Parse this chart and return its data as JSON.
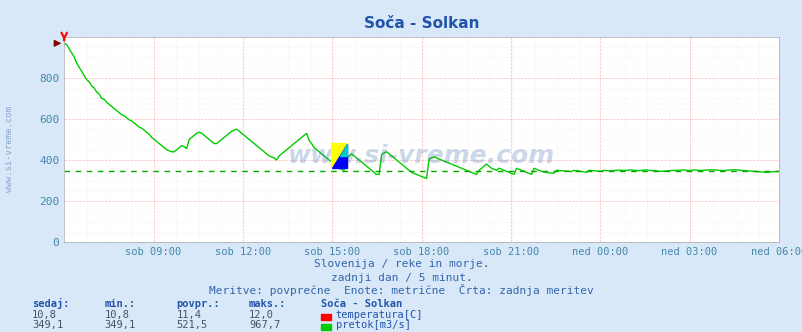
{
  "title": "Soča - Solkan",
  "bg_color": "#d8e8f8",
  "plot_bg_color": "#ffffff",
  "grid_color_major": "#ff9999",
  "grid_color_minor": "#ffdddd",
  "x_label_color": "#4488aa",
  "y_label_color": "#4488aa",
  "title_color": "#2255aa",
  "text_color": "#3366aa",
  "watermark": "www.si-vreme.com",
  "subtitle1": "Slovenija / reke in morje.",
  "subtitle2": "zadnji dan / 5 minut.",
  "subtitle3": "Meritve: povprečne  Enote: metrične  Črta: zadnja meritev",
  "x_ticks_labels": [
    "sob 09:00",
    "sob 12:00",
    "sob 15:00",
    "sob 18:00",
    "sob 21:00",
    "ned 00:00",
    "ned 03:00",
    "ned 06:00"
  ],
  "y_ticks": [
    0,
    200,
    400,
    600,
    800
  ],
  "ylim": [
    0,
    1000
  ],
  "flow_color": "#00cc00",
  "avg_flow_color": "#00aa00",
  "avg_flow_value": 349.1,
  "flow_data": [
    967,
    960,
    940,
    920,
    900,
    870,
    850,
    830,
    810,
    790,
    780,
    760,
    750,
    730,
    720,
    700,
    695,
    680,
    670,
    660,
    650,
    640,
    630,
    620,
    615,
    605,
    595,
    590,
    580,
    570,
    560,
    555,
    545,
    535,
    525,
    510,
    500,
    490,
    480,
    470,
    460,
    450,
    445,
    440,
    440,
    450,
    460,
    470,
    465,
    455,
    500,
    510,
    520,
    530,
    535,
    530,
    520,
    510,
    500,
    490,
    480,
    480,
    490,
    500,
    510,
    520,
    530,
    540,
    545,
    550,
    540,
    530,
    520,
    510,
    500,
    490,
    480,
    470,
    460,
    450,
    440,
    430,
    420,
    415,
    410,
    400,
    420,
    430,
    440,
    450,
    460,
    470,
    480,
    490,
    500,
    510,
    520,
    530,
    495,
    480,
    460,
    450,
    440,
    430,
    420,
    410,
    400,
    390,
    380,
    370,
    360,
    355,
    350,
    410,
    420,
    430,
    420,
    410,
    400,
    390,
    380,
    370,
    360,
    350,
    340,
    330,
    330,
    425,
    435,
    440,
    430,
    420,
    410,
    400,
    390,
    380,
    370,
    360,
    350,
    340,
    335,
    330,
    325,
    320,
    315,
    310,
    405,
    410,
    415,
    410,
    405,
    400,
    395,
    390,
    385,
    380,
    375,
    370,
    365,
    360,
    355,
    350,
    345,
    340,
    335,
    330,
    350,
    360,
    370,
    380,
    370,
    360,
    355,
    350,
    360,
    355,
    350,
    345,
    340,
    335,
    330,
    360,
    355,
    350,
    345,
    340,
    335,
    330,
    360,
    355,
    350,
    345,
    342,
    340,
    338,
    337,
    336,
    350,
    349,
    348,
    347,
    346,
    345,
    344,
    350,
    348,
    346,
    344,
    342,
    340,
    350,
    349,
    348,
    347,
    346,
    345,
    350,
    349,
    348,
    347,
    349,
    350,
    351,
    350,
    349,
    350,
    351,
    352,
    350,
    349,
    348,
    350,
    351,
    352,
    350,
    349,
    348,
    347,
    346,
    345,
    346,
    347,
    348,
    349,
    350,
    349,
    350,
    351,
    352,
    350,
    349,
    350,
    352,
    351,
    350,
    349,
    350,
    351,
    352,
    353,
    352,
    351,
    350,
    349,
    348,
    350,
    351,
    352,
    353,
    352,
    351,
    350,
    349,
    348,
    347,
    346,
    345,
    344,
    343,
    342,
    341,
    340,
    341,
    342,
    343,
    344,
    345
  ]
}
